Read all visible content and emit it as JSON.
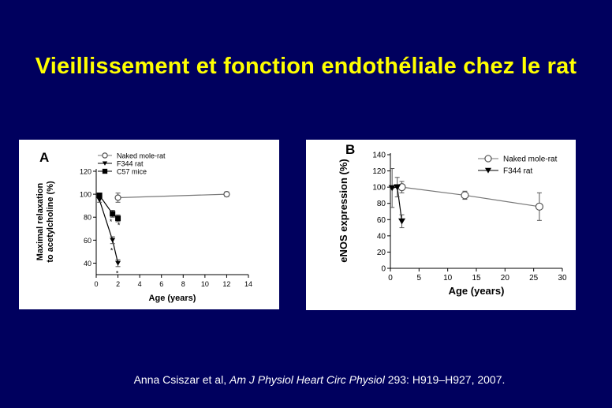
{
  "slide": {
    "title": "Vieillissement et fonction endothéliale chez le rat",
    "citation": {
      "authors": "Anna Csiszar et al, ",
      "journal": "Am J Physiol Heart Circ Physiol",
      "rest": " 293: H919–H927, 2007."
    }
  },
  "colors": {
    "background": "#00005e",
    "title": "#ffff00",
    "text": "#ffffff"
  },
  "chart_data": [
    {
      "type": "line",
      "panel_label": "A",
      "xlabel": "Age (years)",
      "ylabel": [
        "Maximal relaxation",
        "to acetylcholine (%)"
      ],
      "xlim": [
        0,
        14
      ],
      "ylim": [
        30,
        120
      ],
      "xticks": [
        0,
        2,
        4,
        6,
        8,
        10,
        12,
        14
      ],
      "yticks": [
        40,
        60,
        80,
        100,
        120
      ],
      "legend": "top",
      "series": [
        {
          "name": "Naked mole-rat",
          "marker": "open-circle",
          "x": [
            2,
            12
          ],
          "y": [
            97,
            100
          ],
          "err": [
            4,
            2
          ]
        },
        {
          "name": "F344 rat",
          "marker": "filled-triangle-down",
          "x": [
            0.3,
            1.5,
            2
          ],
          "y": [
            95,
            60,
            40
          ],
          "err": [
            2,
            3,
            3
          ]
        },
        {
          "name": "C57 mice",
          "marker": "filled-square",
          "x": [
            0.3,
            1.5,
            2
          ],
          "y": [
            99,
            83,
            79
          ],
          "err": [
            2,
            3,
            3
          ]
        }
      ],
      "annotations": [
        "*",
        "*",
        "*",
        "*"
      ]
    },
    {
      "type": "line",
      "panel_label": "B",
      "xlabel": "Age (years)",
      "ylabel": [
        "eNOS expression (%)"
      ],
      "xlim": [
        0,
        30
      ],
      "ylim": [
        0,
        140
      ],
      "xticks": [
        0,
        5,
        10,
        15,
        20,
        25,
        30
      ],
      "yticks": [
        0,
        20,
        40,
        60,
        80,
        100,
        120,
        140
      ],
      "legend": "top-right",
      "series": [
        {
          "name": "Naked mole-rat",
          "marker": "open-circle",
          "x": [
            2,
            13,
            26
          ],
          "y": [
            100,
            90,
            76
          ],
          "err": [
            7,
            5,
            17
          ]
        },
        {
          "name": "F344 rat",
          "marker": "filled-triangle-down",
          "x": [
            0.3,
            1.2,
            2
          ],
          "y": [
            99,
            100,
            58
          ],
          "err": [
            24,
            12,
            8
          ]
        }
      ]
    }
  ]
}
